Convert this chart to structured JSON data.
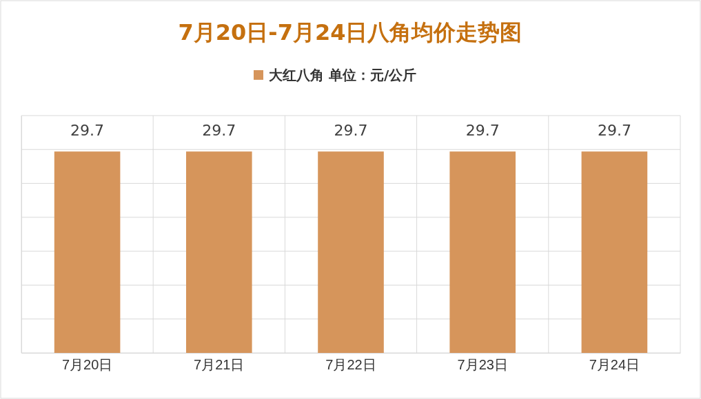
{
  "chart_data": {
    "type": "bar",
    "title": "7月20日-7月24日八角均价走势图",
    "categories": [
      "7月20日",
      "7月21日",
      "7月22日",
      "7月23日",
      "7月24日"
    ],
    "series": [
      {
        "name": "大红八角 单位：元/公斤",
        "color": "#d6955b",
        "values": [
          29.7,
          29.7,
          29.7,
          29.7,
          29.7
        ]
      }
    ],
    "ylim": [
      0,
      35
    ],
    "yticks": [
      {
        "value": 0,
        "label": null
      },
      {
        "value": 5,
        "label": null
      },
      {
        "value": 10,
        "label": null
      },
      {
        "value": 15,
        "label": null
      },
      {
        "value": 20,
        "label": null
      },
      {
        "value": 25,
        "label": null
      },
      {
        "value": 30,
        "label": null
      },
      {
        "value": 35,
        "label": null
      }
    ],
    "tick_labels": "x",
    "grid": true,
    "legend": "top",
    "data_labels": true
  }
}
